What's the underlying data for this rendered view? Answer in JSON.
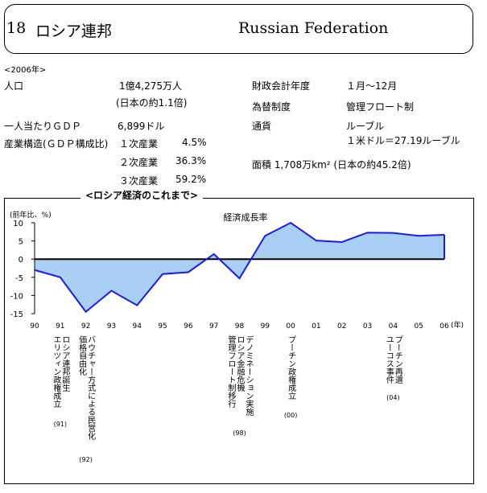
{
  "header": {
    "number": "18",
    "title_jp": "ロシア連邦",
    "title_en": "Russian Federation"
  },
  "year_note": "<2006年>",
  "facts": {
    "population_label": "人口",
    "population_value": "1億4,275万人",
    "population_note": "(日本の約1.1倍)",
    "gdp_label": "一人当たりＧＤＰ",
    "gdp_value": "6,899ドル",
    "structure_label": "産業構造(ＧＤＰ構成比)",
    "sector1_label": "１次産業",
    "sector1_value": "4.5%",
    "sector2_label": "２次産業",
    "sector2_value": "36.3%",
    "sector3_label": "３次産業",
    "sector3_value": "59.2%",
    "fiscal_label": "財政会計年度",
    "fiscal_value": "１月～12月",
    "fx_label": "為替制度",
    "fx_value": "管理フロート制",
    "currency_label": "通貨",
    "currency_value": "ルーブル",
    "currency_rate": "１米ドル＝27.19ルーブル",
    "area_text": "面積 1,708万km² (日本の約45.2倍)"
  },
  "chart_heading": "<ロシア経済のこれまで>",
  "colors": {
    "fill": "#a9cff5",
    "line": "#1a1aee",
    "axis": "#000000"
  },
  "chart_data": {
    "type": "area",
    "title": "経済成長率",
    "ylabel": "(前年比、%)",
    "xlabel": "(年)",
    "x": [
      "90",
      "91",
      "92",
      "93",
      "94",
      "95",
      "96",
      "97",
      "98",
      "99",
      "00",
      "01",
      "02",
      "03",
      "04",
      "05",
      "06"
    ],
    "series": [
      {
        "values": [
          -3.0,
          -5.0,
          -14.5,
          -8.7,
          -12.7,
          -4.1,
          -3.6,
          1.4,
          -5.3,
          6.4,
          10.0,
          5.1,
          4.7,
          7.3,
          7.2,
          6.4,
          6.7
        ]
      }
    ],
    "ylim": [
      -15,
      10
    ],
    "yticks": [
      10,
      5,
      0,
      -5,
      -10,
      -15
    ],
    "events": [
      {
        "x": "91",
        "lines": [
          "エリツィン政権成立",
          "ロシア連邦誕生"
        ],
        "tag": "(91)"
      },
      {
        "x": "92",
        "lines": [
          "価格自由化",
          "バウチャー方式による民営化"
        ],
        "tag": "(92)"
      },
      {
        "x": "98",
        "lines": [
          "管理フロート制移行",
          "ロシア金融危機",
          "デノミネーション実施"
        ],
        "tag": "(98)"
      },
      {
        "x": "00",
        "lines": [
          "プーチン政権成立"
        ],
        "tag": "(00)"
      },
      {
        "x": "04",
        "lines": [
          "ユーコス事件",
          "プーチン再選"
        ],
        "tag": "(04)"
      }
    ]
  }
}
